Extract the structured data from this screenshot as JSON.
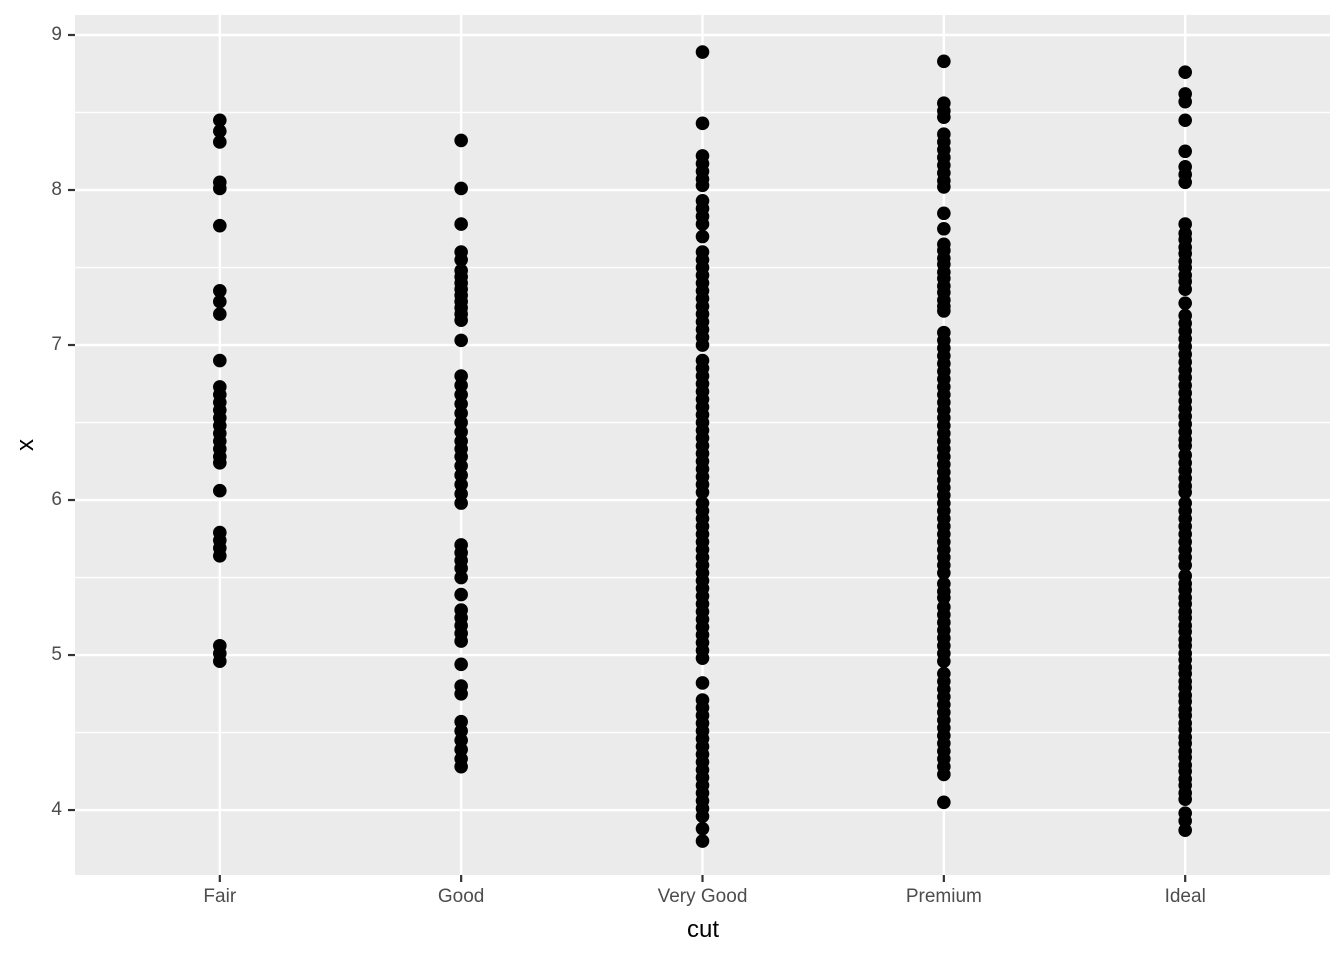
{
  "chart_data": {
    "type": "scatter",
    "title": "",
    "xlabel": "cut",
    "ylabel": "x",
    "categories": [
      "Fair",
      "Good",
      "Very Good",
      "Premium",
      "Ideal"
    ],
    "y_ticks": [
      4,
      5,
      6,
      7,
      8,
      9
    ],
    "y_minor_ticks": [
      4.5,
      5.5,
      6.5,
      7.5,
      8.5
    ],
    "ylim": [
      3.581,
      9.129
    ],
    "grid": "horizontal major+minor, vertical major at categories",
    "legend": "none",
    "colors": {
      "panel_bg": "#EBEBEB",
      "grid": "#FFFFFF",
      "point": "#000000",
      "tick_mark": "#333333",
      "tick_label": "#4D4D4D",
      "axis_title": "#000000",
      "figure_bg": "#FFFFFF"
    },
    "series": [
      {
        "name": "Fair",
        "values": [
          8.45,
          8.38,
          8.31,
          8.05,
          8.01,
          7.77,
          7.35,
          7.28,
          7.2,
          6.9,
          6.73,
          6.68,
          6.63,
          6.58,
          6.53,
          6.48,
          6.43,
          6.38,
          6.33,
          6.28,
          6.24,
          6.06,
          5.79,
          5.74,
          5.69,
          5.64,
          5.06,
          5.01,
          4.96
        ]
      },
      {
        "name": "Good",
        "values": [
          8.32,
          8.01,
          7.78,
          7.6,
          7.55,
          7.48,
          7.44,
          7.4,
          7.36,
          7.32,
          7.28,
          7.24,
          7.2,
          7.16,
          7.03,
          6.8,
          6.74,
          6.68,
          6.62,
          6.56,
          6.5,
          6.44,
          6.38,
          6.33,
          6.28,
          6.22,
          6.16,
          6.1,
          6.04,
          5.98,
          5.71,
          5.66,
          5.61,
          5.56,
          5.5,
          5.39,
          5.29,
          5.24,
          5.19,
          5.14,
          5.09,
          4.94,
          4.8,
          4.75,
          4.57,
          4.51,
          4.45,
          4.39,
          4.33,
          4.28
        ]
      },
      {
        "name": "Very Good",
        "values": [
          8.89,
          8.43,
          8.22,
          8.17,
          8.12,
          8.07,
          8.03,
          7.93,
          7.88,
          7.83,
          7.78,
          7.7,
          7.6,
          7.55,
          7.5,
          7.45,
          7.4,
          7.35,
          7.3,
          7.25,
          7.2,
          7.15,
          7.1,
          7.05,
          7.0,
          6.9,
          6.85,
          6.8,
          6.75,
          6.7,
          6.65,
          6.6,
          6.55,
          6.5,
          6.45,
          6.4,
          6.35,
          6.3,
          6.25,
          6.2,
          6.15,
          6.1,
          6.05,
          5.98,
          5.93,
          5.88,
          5.83,
          5.78,
          5.73,
          5.68,
          5.63,
          5.58,
          5.53,
          5.48,
          5.43,
          5.38,
          5.33,
          5.28,
          5.23,
          5.18,
          5.13,
          5.08,
          5.03,
          4.98,
          4.82,
          4.71,
          4.66,
          4.61,
          4.56,
          4.51,
          4.46,
          4.41,
          4.36,
          4.31,
          4.26,
          4.21,
          4.16,
          4.11,
          4.06,
          4.01,
          3.96,
          3.88,
          3.8
        ]
      },
      {
        "name": "Premium",
        "values": [
          8.83,
          8.56,
          8.51,
          8.47,
          8.36,
          8.31,
          8.26,
          8.21,
          8.16,
          8.11,
          8.06,
          8.02,
          7.85,
          7.75,
          7.65,
          7.61,
          7.56,
          7.52,
          7.47,
          7.43,
          7.38,
          7.34,
          7.29,
          7.25,
          7.22,
          7.08,
          7.03,
          6.98,
          6.93,
          6.88,
          6.83,
          6.78,
          6.73,
          6.68,
          6.63,
          6.58,
          6.53,
          6.48,
          6.43,
          6.38,
          6.33,
          6.28,
          6.23,
          6.18,
          6.13,
          6.08,
          6.03,
          5.98,
          5.93,
          5.88,
          5.83,
          5.78,
          5.73,
          5.68,
          5.63,
          5.58,
          5.53,
          5.46,
          5.41,
          5.37,
          5.31,
          5.26,
          5.21,
          5.16,
          5.11,
          5.06,
          5.01,
          4.96,
          4.88,
          4.83,
          4.78,
          4.73,
          4.68,
          4.63,
          4.58,
          4.53,
          4.48,
          4.43,
          4.38,
          4.33,
          4.28,
          4.23,
          4.05
        ]
      },
      {
        "name": "Ideal",
        "values": [
          8.76,
          8.62,
          8.57,
          8.45,
          8.25,
          8.15,
          8.1,
          8.05,
          7.78,
          7.72,
          7.68,
          7.63,
          7.59,
          7.54,
          7.5,
          7.45,
          7.41,
          7.36,
          7.27,
          7.19,
          7.14,
          7.09,
          7.04,
          6.99,
          6.94,
          6.89,
          6.84,
          6.79,
          6.74,
          6.69,
          6.64,
          6.59,
          6.54,
          6.49,
          6.44,
          6.39,
          6.35,
          6.29,
          6.24,
          6.19,
          6.14,
          6.09,
          6.05,
          5.98,
          5.93,
          5.88,
          5.83,
          5.78,
          5.73,
          5.68,
          5.63,
          5.58,
          5.51,
          5.46,
          5.42,
          5.37,
          5.33,
          5.28,
          5.24,
          5.19,
          5.15,
          5.1,
          5.06,
          5.01,
          4.97,
          4.92,
          4.88,
          4.83,
          4.79,
          4.74,
          4.7,
          4.65,
          4.61,
          4.56,
          4.52,
          4.47,
          4.43,
          4.38,
          4.34,
          4.29,
          4.25,
          4.2,
          4.16,
          4.11,
          4.07,
          3.98,
          3.93,
          3.87
        ]
      }
    ]
  }
}
